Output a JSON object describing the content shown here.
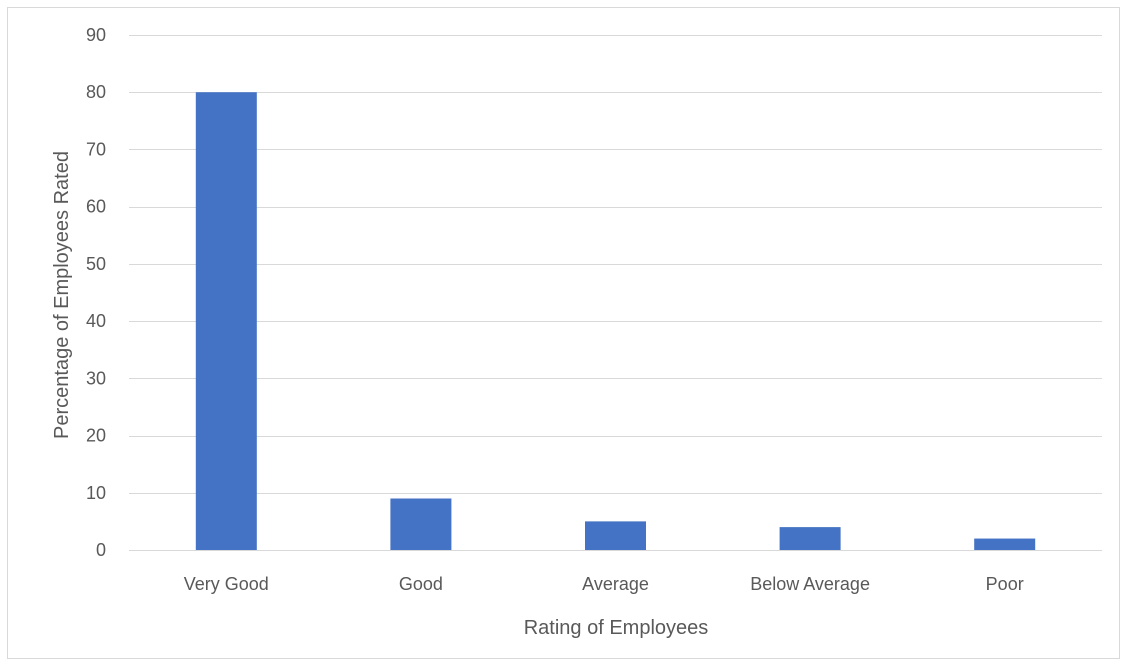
{
  "chart_data": {
    "type": "bar",
    "title": "",
    "xlabel": "Rating of Employees",
    "ylabel": "Percentage of Employees Rated",
    "categories": [
      "Very Good",
      "Good",
      "Average",
      "Below Average",
      "Poor"
    ],
    "values": [
      80,
      9,
      5,
      4,
      2
    ],
    "ylim": [
      0,
      90
    ],
    "yticks": [
      0,
      10,
      20,
      30,
      40,
      50,
      60,
      70,
      80,
      90
    ],
    "grid": true,
    "legend": "none",
    "bar_color": "#4472c4",
    "grid_color": "#d9d9d9",
    "text_color": "#595959"
  }
}
